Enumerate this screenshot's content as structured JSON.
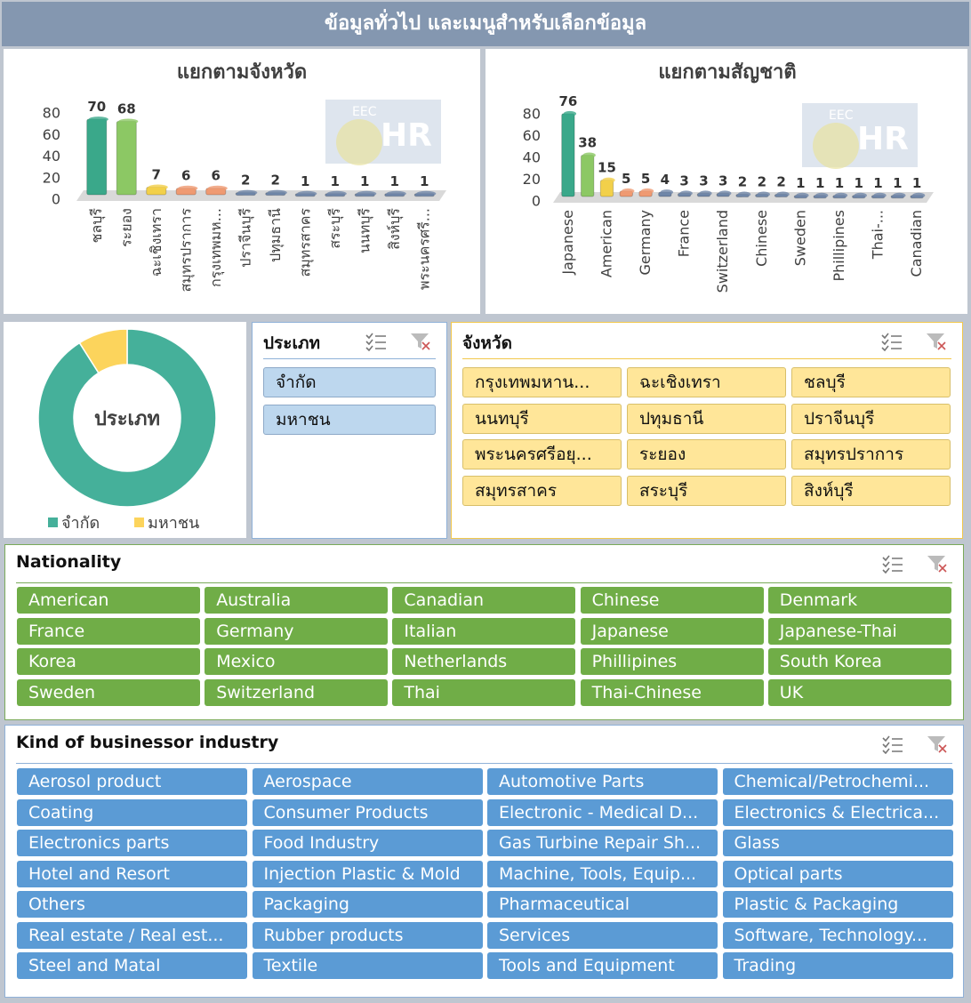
{
  "header": {
    "title": "ข้อมูลทั่วไป และเมนูสำหรับเลือกข้อมูล"
  },
  "watermark": [
    "EEC",
    "HR"
  ],
  "chart_data": [
    {
      "type": "bar",
      "title": "แยกตามจังหวัด",
      "categories": [
        "ชลบุรี",
        "ระยอง",
        "ฉะเชิงเทรา",
        "สมุทรปราการ",
        "กรุงเทพมห...",
        "ปราจีนบุรี",
        "ปทุมธานี",
        "สมุทรสาคร",
        "สระบุรี",
        "นนทบุรี",
        "สิงห์บุรี",
        "พระนครศรี..."
      ],
      "values": [
        70,
        68,
        7,
        6,
        6,
        2,
        2,
        1,
        1,
        1,
        1,
        1
      ],
      "colors": [
        "#3aa88a",
        "#8cc864",
        "#f2d04a",
        "#ef9a72",
        "#ef9a72",
        "#6f86a8",
        "#6f86a8",
        "#6f86a8",
        "#6f86a8",
        "#6f86a8",
        "#6f86a8",
        "#6f86a8"
      ],
      "ylim": [
        0,
        80
      ],
      "yticks": [
        0,
        20,
        40,
        60,
        80
      ]
    },
    {
      "type": "bar",
      "title": "แยกตามสัญชาติ",
      "categories": [
        "Japanese",
        null,
        "American",
        null,
        "Germany",
        null,
        "France",
        null,
        "Switzerland",
        null,
        "Chinese",
        null,
        "Sweden",
        null,
        "Phillipines",
        null,
        "Thai-...",
        null,
        "Canadian"
      ],
      "values": [
        76,
        38,
        15,
        5,
        5,
        4,
        3,
        3,
        3,
        2,
        2,
        2,
        1,
        1,
        1,
        1,
        1,
        1,
        1
      ],
      "colors": [
        "#3aa88a",
        "#8cc864",
        "#f2d04a",
        "#ef9a72",
        "#ef9a72",
        "#6f86a8",
        "#6f86a8",
        "#6f86a8",
        "#6f86a8",
        "#6f86a8",
        "#6f86a8",
        "#6f86a8",
        "#6f86a8",
        "#6f86a8",
        "#6f86a8",
        "#6f86a8",
        "#6f86a8",
        "#6f86a8",
        "#6f86a8"
      ],
      "ylim": [
        0,
        80
      ],
      "yticks": [
        0,
        20,
        40,
        60,
        80
      ]
    },
    {
      "type": "donut",
      "center_label": "ประเภท",
      "categories": [
        "จำกัด",
        "มหาชน"
      ],
      "values": [
        91,
        9
      ],
      "colors": [
        "#45b09a",
        "#fcd45c"
      ],
      "legend": "bottom"
    }
  ],
  "slicers": [
    {
      "title": "ประเภท",
      "items": [
        "จำกัด",
        "มหาชน"
      ]
    },
    {
      "title": "จังหวัด",
      "items": [
        "กรุงเทพมหาน...",
        "ฉะเชิงเทรา",
        "ชลบุรี",
        "นนทบุรี",
        "ปทุมธานี",
        "ปราจีนบุรี",
        "พระนครศรีอยุ...",
        "ระยอง",
        "สมุทรปราการ",
        "สมุทรสาคร",
        "สระบุรี",
        "สิงห์บุรี"
      ]
    },
    {
      "title": "Nationality",
      "items": [
        "American",
        "Australia",
        "Canadian",
        "Chinese",
        "Denmark",
        "France",
        "Germany",
        "Italian",
        "Japanese",
        "Japanese-Thai",
        "Korea",
        "Mexico",
        "Netherlands",
        "Phillipines",
        "South Korea",
        "Sweden",
        "Switzerland",
        "Thai",
        "Thai-Chinese",
        "UK"
      ]
    },
    {
      "title": "Kind of businessor industry",
      "items": [
        "Aerosol product",
        "Aerospace",
        "Automotive Parts",
        "Chemical/Petrochemi...",
        "Coating",
        "Consumer Products",
        "Electronic - Medical D...",
        "Electronics & Electrica...",
        "Electronics parts",
        "Food Industry",
        "Gas Turbine Repair Sh...",
        "Glass",
        "Hotel and Resort",
        "Injection Plastic & Mold",
        "Machine, Tools, Equip...",
        "Optical parts",
        "Others",
        "Packaging",
        "Pharmaceutical",
        "Plastic & Packaging",
        "Real estate / Real est...",
        "Rubber products",
        "Services",
        "Software, Technology...",
        "Steel and Matal",
        "Textile",
        "Tools and Equipment",
        "Trading"
      ]
    }
  ]
}
